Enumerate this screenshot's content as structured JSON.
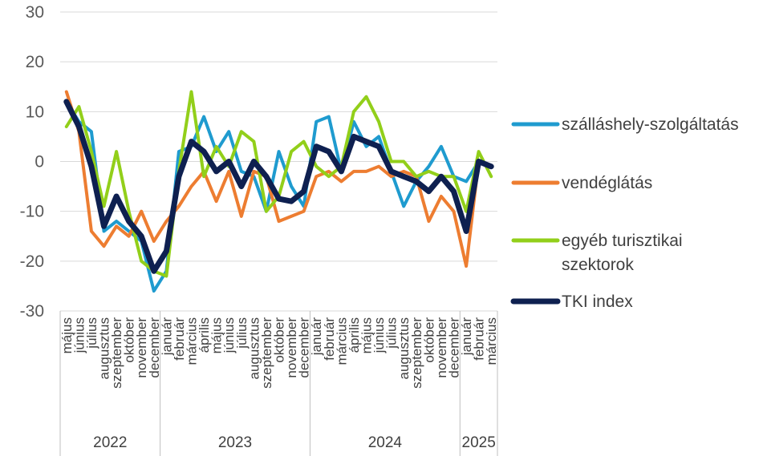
{
  "chart_data": {
    "type": "line",
    "title": "",
    "xlabel": "",
    "ylabel": "",
    "ylim": [
      -30,
      30
    ],
    "yticks": [
      30,
      20,
      10,
      0,
      -10,
      -20,
      -30
    ],
    "grid": "horizontal",
    "legend_position": "right",
    "years": [
      {
        "label": "2022",
        "count": 8
      },
      {
        "label": "2023",
        "count": 12
      },
      {
        "label": "2024",
        "count": 12
      },
      {
        "label": "2025",
        "count": 3
      }
    ],
    "categories": [
      "május",
      "június",
      "július",
      "augusztus",
      "szeptember",
      "október",
      "november",
      "december",
      "január",
      "február",
      "március",
      "április",
      "május",
      "június",
      "július",
      "augusztus",
      "szeptember",
      "október",
      "november",
      "december",
      "január",
      "február",
      "március",
      "április",
      "május",
      "június",
      "július",
      "augusztus",
      "szeptember",
      "október",
      "november",
      "december",
      "január",
      "február",
      "március"
    ],
    "series": [
      {
        "name": "szálláshely-szolgáltatás",
        "color": "#1F9BCF",
        "values": [
          12,
          8,
          6,
          -14,
          -12,
          -14,
          -16,
          -26,
          -22,
          2,
          3,
          9,
          2,
          6,
          -2,
          -3,
          -10,
          2,
          -5,
          -9,
          8,
          9,
          -2,
          8,
          3,
          5,
          -2,
          -9,
          -4,
          -1,
          3,
          -3,
          -4,
          0,
          -1
        ]
      },
      {
        "name": "vendéglátás",
        "color": "#ED7D31",
        "values": [
          14,
          6,
          -14,
          -17,
          -13,
          -15,
          -10,
          -16,
          -12,
          -9,
          -5,
          -2,
          -8,
          -2,
          -11,
          -2,
          -3,
          -12,
          -11,
          -10,
          -3,
          -2,
          -4,
          -2,
          -2,
          -1,
          -3,
          -2,
          -3,
          -12,
          -7,
          -10,
          -21,
          0,
          -1
        ]
      },
      {
        "name": "egyéb turisztikai szektorok",
        "color": "#92CF1A",
        "values": [
          7,
          11,
          2,
          -9,
          2,
          -10,
          -20,
          -22,
          -23,
          -2,
          14,
          -3,
          3,
          -1,
          6,
          4,
          -10,
          -7,
          2,
          4,
          -1,
          -3,
          -1,
          10,
          13,
          8,
          0,
          0,
          -3,
          -2,
          -3,
          -3,
          -10,
          2,
          -3
        ]
      },
      {
        "name": "TKI index",
        "color": "#0E2050",
        "values": [
          12,
          7,
          -1,
          -13,
          -7,
          -12,
          -15,
          -22,
          -18,
          -3,
          4,
          2,
          -2,
          0,
          -5,
          0,
          -3,
          -7.5,
          -8,
          -6,
          3,
          2,
          -2,
          5,
          4,
          3,
          -2,
          -3,
          -4,
          -6,
          -3,
          -6,
          -14,
          0,
          -1
        ]
      }
    ]
  }
}
